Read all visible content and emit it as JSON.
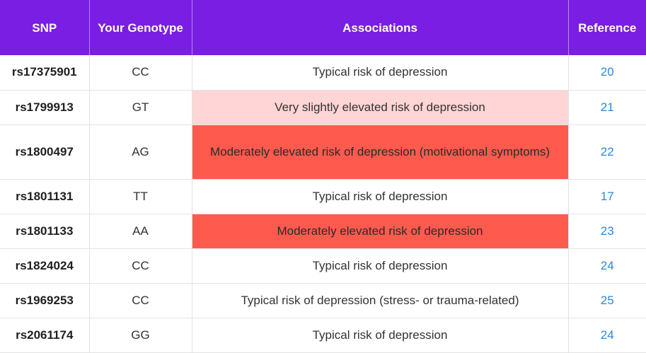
{
  "headers": {
    "snp": "SNP",
    "genotype": "Your Genotype",
    "associations": "Associations",
    "reference": "Reference"
  },
  "colors": {
    "header": "#7a1ee3",
    "typical": "#ffffff",
    "slight": "#ffd5d5",
    "moderate": "#ff5a4e",
    "reference_link": "#2f86d6"
  },
  "rows": [
    {
      "snp": "rs17375901",
      "genotype": "CC",
      "association": "Typical risk of depression",
      "reference": "20",
      "level": "typical"
    },
    {
      "snp": "rs1799913",
      "genotype": "GT",
      "association": "Very slightly elevated risk of depression",
      "reference": "21",
      "level": "slight"
    },
    {
      "snp": "rs1800497",
      "genotype": "AG",
      "association": "Moderately elevated risk of depression (motivational symptoms)",
      "reference": "22",
      "level": "moderate"
    },
    {
      "snp": "rs1801131",
      "genotype": "TT",
      "association": "Typical risk of depression",
      "reference": "17",
      "level": "typical"
    },
    {
      "snp": "rs1801133",
      "genotype": "AA",
      "association": "Moderately elevated risk of depression",
      "reference": "23",
      "level": "moderate"
    },
    {
      "snp": "rs1824024",
      "genotype": "CC",
      "association": "Typical risk of depression",
      "reference": "24",
      "level": "typical"
    },
    {
      "snp": "rs1969253",
      "genotype": "CC",
      "association": "Typical risk of depression (stress- or trauma-related)",
      "reference": "25",
      "level": "typical"
    },
    {
      "snp": "rs2061174",
      "genotype": "GG",
      "association": "Typical risk of depression",
      "reference": "24",
      "level": "typical"
    }
  ]
}
